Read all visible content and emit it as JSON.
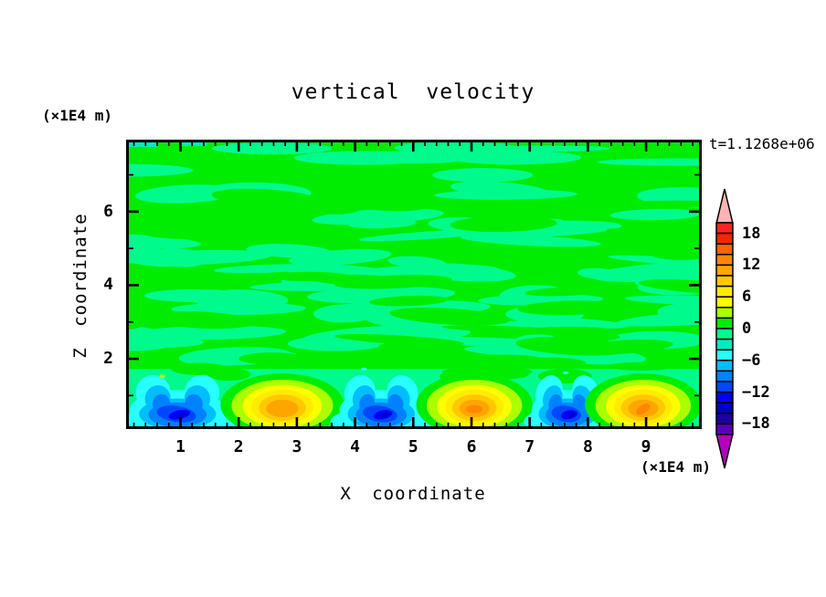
{
  "title": "vertical velocity",
  "timestamp": "t=1.1268e+06",
  "axes": {
    "x": {
      "title": "X coordinate",
      "unit": "(×1E4 m)",
      "tick_labels": [
        "1",
        "2",
        "3",
        "4",
        "5",
        "6",
        "7",
        "8",
        "9"
      ],
      "range": [
        0,
        10
      ],
      "minor_tick_step": 0.2,
      "major_tick_step": 1
    },
    "y": {
      "title": "Z coordinate",
      "unit": "(×1E4 m)",
      "tick_labels": [
        "2",
        "4",
        "6"
      ],
      "range": [
        0,
        8
      ],
      "minor_tick_step": 1,
      "major_tick_step": 2
    }
  },
  "colorbar": {
    "tick_labels": [
      "18",
      "12",
      "6",
      "0",
      "−6",
      "−12",
      "−18"
    ],
    "level_min": -20,
    "level_max": 20,
    "level_step": 2,
    "colors_top_to_bottom": [
      "#FB2323",
      "#F52600",
      "#FF6400",
      "#FF8700",
      "#FFA500",
      "#FFC800",
      "#FFEB00",
      "#FBFF00",
      "#AAFF00",
      "#00EC00",
      "#00FA8C",
      "#00ECBE",
      "#28FFFF",
      "#00BEFF",
      "#0082FF",
      "#0046FF",
      "#0000FA",
      "#0000C8",
      "#1E00A0",
      "#5A00B4"
    ],
    "over_color": "#FFB3B3",
    "under_color": "#B400BE"
  },
  "chart_data": {
    "type": "heatmap",
    "title": "vertical velocity",
    "xlabel": "X coordinate (×1E4 m)",
    "ylabel": "Z coordinate (×1E4 m)",
    "time_label": "t=1.1268e+06",
    "xlim": [
      0,
      10
    ],
    "ylim": [
      0,
      8
    ],
    "contour_levels": [
      -20,
      -18,
      -16,
      -14,
      -12,
      -10,
      -8,
      -6,
      -4,
      -2,
      0,
      2,
      4,
      6,
      8,
      10,
      12,
      14,
      16,
      18,
      20
    ],
    "background_field_range": [
      -2,
      2
    ],
    "background_description": "mottled green field of weak vertical velocity filling the domain above z=2",
    "features": [
      {
        "type": "downdraft",
        "x_center": 0.95,
        "z_center": 0.8,
        "peak_value": -15,
        "width": 1.6
      },
      {
        "type": "updraft",
        "x_center": 2.75,
        "z_center": 0.8,
        "peak_value": 11,
        "width": 1.7
      },
      {
        "type": "downdraft",
        "x_center": 4.45,
        "z_center": 0.8,
        "peak_value": -15,
        "width": 1.4
      },
      {
        "type": "updraft",
        "x_center": 6.05,
        "z_center": 0.8,
        "peak_value": 13,
        "width": 1.6
      },
      {
        "type": "downdraft",
        "x_center": 7.65,
        "z_center": 0.8,
        "peak_value": -15,
        "width": 1.2
      },
      {
        "type": "updraft",
        "x_center": 8.95,
        "z_center": 0.8,
        "peak_value": 13,
        "width": 1.6
      }
    ]
  }
}
